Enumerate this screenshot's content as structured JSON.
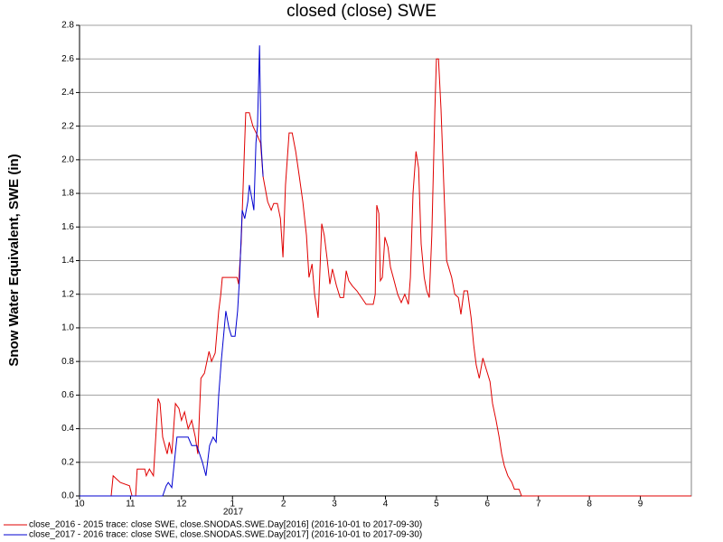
{
  "chart_data": {
    "type": "line",
    "title": "closed (close) SWE",
    "y_label": "Snow Water Equivalent, SWE (in)",
    "annotation": "2017",
    "xlim": [
      0,
      12
    ],
    "xticks": [
      {
        "value": 0,
        "label": "10"
      },
      {
        "value": 1,
        "label": "11"
      },
      {
        "value": 2,
        "label": "12"
      },
      {
        "value": 3,
        "label": "1"
      },
      {
        "value": 4,
        "label": "2"
      },
      {
        "value": 5,
        "label": "3"
      },
      {
        "value": 6,
        "label": "4"
      },
      {
        "value": 7,
        "label": "5"
      },
      {
        "value": 8,
        "label": "6"
      },
      {
        "value": 9,
        "label": "7"
      },
      {
        "value": 10,
        "label": "8"
      },
      {
        "value": 11,
        "label": "9"
      }
    ],
    "ylim": [
      0,
      2.8
    ],
    "yticks": [
      {
        "value": 0,
        "label": "0.0"
      },
      0.2,
      0.4,
      0.6,
      0.8,
      {
        "value": 1,
        "label": "1.0"
      },
      1.2,
      1.4,
      1.6,
      1.8,
      {
        "value": 2,
        "label": "2.0"
      },
      2.2,
      2.4,
      2.6,
      2.8
    ],
    "grid": true,
    "series": [
      {
        "name": "close_2016 - 2015 trace: close SWE, close.SNODAS.SWE.Day[2016] (2016-10-01 to 2017-09-30)",
        "color": "#e00000",
        "x": [
          0,
          0.62,
          0.66,
          0.8,
          0.98,
          1.03,
          1.1,
          1.13,
          1.28,
          1.31,
          1.37,
          1.45,
          1.54,
          1.58,
          1.63,
          1.72,
          1.76,
          1.81,
          1.88,
          1.95,
          2.0,
          2.06,
          2.13,
          2.2,
          2.27,
          2.32,
          2.38,
          2.45,
          2.54,
          2.59,
          2.66,
          2.73,
          2.77,
          2.8,
          3.09,
          3.12,
          3.17,
          3.21,
          3.26,
          3.33,
          3.4,
          3.48,
          3.55,
          3.6,
          3.69,
          3.76,
          3.81,
          3.88,
          3.94,
          3.99,
          4.04,
          4.11,
          4.17,
          4.24,
          4.31,
          4.38,
          4.45,
          4.5,
          4.56,
          4.61,
          4.68,
          4.75,
          4.8,
          4.86,
          4.91,
          4.96,
          5.04,
          5.11,
          5.18,
          5.23,
          5.28,
          5.35,
          5.44,
          5.53,
          5.62,
          5.76,
          5.8,
          5.83,
          5.87,
          5.9,
          5.94,
          5.99,
          6.05,
          6.1,
          6.17,
          6.24,
          6.31,
          6.38,
          6.45,
          6.49,
          6.54,
          6.6,
          6.65,
          6.7,
          6.76,
          6.81,
          6.86,
          6.91,
          6.97,
          7.0,
          7.04,
          7.09,
          7.15,
          7.2,
          7.25,
          7.3,
          7.36,
          7.43,
          7.48,
          7.54,
          7.61,
          7.68,
          7.73,
          7.78,
          7.84,
          7.91,
          7.98,
          8.05,
          8.1,
          8.17,
          8.23,
          8.28,
          8.33,
          8.4,
          8.48,
          8.53,
          8.62,
          8.67,
          12
        ],
        "values": [
          0,
          0,
          0.12,
          0.08,
          0.06,
          0,
          0,
          0.16,
          0.16,
          0.12,
          0.16,
          0.12,
          0.58,
          0.55,
          0.35,
          0.25,
          0.32,
          0.25,
          0.55,
          0.52,
          0.45,
          0.5,
          0.4,
          0.45,
          0.35,
          0.25,
          0.7,
          0.73,
          0.86,
          0.8,
          0.85,
          1.1,
          1.2,
          1.3,
          1.3,
          1.26,
          1.5,
          1.85,
          2.28,
          2.28,
          2.2,
          2.15,
          2.1,
          1.9,
          1.75,
          1.7,
          1.74,
          1.74,
          1.65,
          1.42,
          1.85,
          2.16,
          2.16,
          2.05,
          1.9,
          1.75,
          1.55,
          1.3,
          1.38,
          1.2,
          1.06,
          1.62,
          1.55,
          1.4,
          1.26,
          1.35,
          1.25,
          1.18,
          1.18,
          1.34,
          1.28,
          1.25,
          1.22,
          1.18,
          1.14,
          1.14,
          1.2,
          1.73,
          1.68,
          1.28,
          1.3,
          1.54,
          1.48,
          1.36,
          1.28,
          1.2,
          1.15,
          1.2,
          1.14,
          1.3,
          1.8,
          2.05,
          1.95,
          1.5,
          1.3,
          1.22,
          1.18,
          1.55,
          2.3,
          2.6,
          2.6,
          2.3,
          1.8,
          1.4,
          1.35,
          1.3,
          1.2,
          1.18,
          1.08,
          1.22,
          1.22,
          1.06,
          0.9,
          0.78,
          0.7,
          0.82,
          0.75,
          0.68,
          0.55,
          0.45,
          0.35,
          0.25,
          0.18,
          0.12,
          0.08,
          0.04,
          0.04,
          0,
          0
        ]
      },
      {
        "name": "close_2017 - 2016 trace: close SWE, close.SNODAS.SWE.Day[2017] (2016-10-01 to 2017-09-30)",
        "color": "#0000d0",
        "x": [
          0,
          1.63,
          1.7,
          1.74,
          1.81,
          1.86,
          1.91,
          2.13,
          2.2,
          2.3,
          2.41,
          2.48,
          2.55,
          2.62,
          2.68,
          2.73,
          2.78,
          2.84,
          2.87,
          2.93,
          2.98,
          3.05,
          3.1,
          3.14,
          3.19,
          3.24,
          3.3,
          3.33,
          3.39,
          3.42,
          3.46,
          3.49,
          3.53,
          3.56,
          3.6
        ],
        "values": [
          0,
          0,
          0.06,
          0.08,
          0.05,
          0.2,
          0.35,
          0.35,
          0.3,
          0.3,
          0.2,
          0.12,
          0.3,
          0.35,
          0.32,
          0.6,
          0.8,
          1.0,
          1.1,
          1.0,
          0.95,
          0.95,
          1.1,
          1.3,
          1.7,
          1.65,
          1.75,
          1.85,
          1.75,
          1.7,
          2.1,
          2.2,
          2.68,
          2.1,
          1.9
        ]
      }
    ]
  }
}
